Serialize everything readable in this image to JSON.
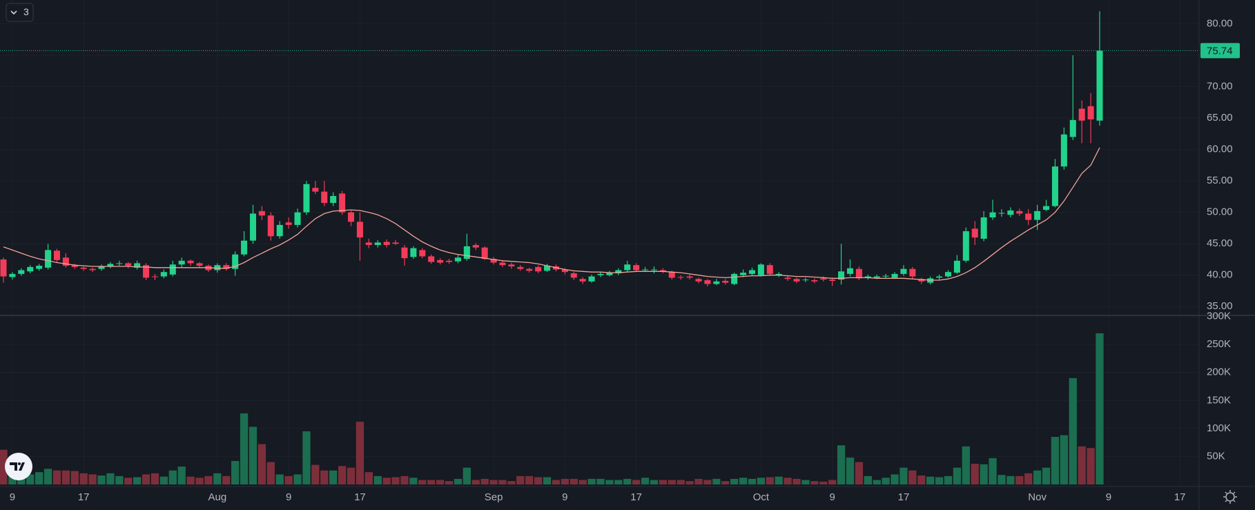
{
  "chart_data": {
    "type": "candlestick",
    "x": [
      "Jul 8",
      "Jul 9",
      "Jul 10",
      "Jul 11",
      "Jul 12",
      "Jul 13",
      "Jul 14",
      "Jul 15",
      "Jul 16",
      "Jul 17",
      "Jul 18",
      "Jul 19",
      "Jul 20",
      "Jul 21",
      "Jul 22",
      "Jul 23",
      "Jul 24",
      "Jul 25",
      "Jul 26",
      "Jul 27",
      "Jul 28",
      "Jul 29",
      "Jul 30",
      "Jul 31",
      "Aug 1",
      "Aug 2",
      "Aug 3",
      "Aug 4",
      "Aug 5",
      "Aug 6",
      "Aug 7",
      "Aug 8",
      "Aug 9",
      "Aug 10",
      "Aug 11",
      "Aug 12",
      "Aug 13",
      "Aug 14",
      "Aug 15",
      "Aug 16",
      "Aug 17",
      "Aug 18",
      "Aug 19",
      "Aug 20",
      "Aug 21",
      "Aug 22",
      "Aug 23",
      "Aug 24",
      "Aug 25",
      "Aug 26",
      "Aug 27",
      "Aug 28",
      "Aug 29",
      "Aug 30",
      "Aug 31",
      "Sep 1",
      "Sep 2",
      "Sep 3",
      "Sep 4",
      "Sep 5",
      "Sep 6",
      "Sep 7",
      "Sep 8",
      "Sep 9",
      "Sep 10",
      "Sep 11",
      "Sep 12",
      "Sep 13",
      "Sep 14",
      "Sep 15",
      "Sep 16",
      "Sep 17",
      "Sep 18",
      "Sep 19",
      "Sep 20",
      "Sep 21",
      "Sep 22",
      "Sep 23",
      "Sep 24",
      "Sep 25",
      "Sep 26",
      "Sep 27",
      "Sep 28",
      "Sep 29",
      "Sep 30",
      "Oct 1",
      "Oct 2",
      "Oct 3",
      "Oct 4",
      "Oct 5",
      "Oct 6",
      "Oct 7",
      "Oct 8",
      "Oct 9",
      "Oct 10",
      "Oct 11",
      "Oct 12",
      "Oct 13",
      "Oct 14",
      "Oct 15",
      "Oct 16",
      "Oct 17",
      "Oct 18",
      "Oct 19",
      "Oct 20",
      "Oct 21",
      "Oct 22",
      "Oct 23",
      "Oct 24",
      "Oct 25",
      "Oct 26",
      "Oct 27",
      "Oct 28",
      "Oct 29",
      "Oct 30",
      "Oct 31",
      "Nov 1",
      "Nov 2",
      "Nov 3",
      "Nov 4",
      "Nov 5",
      "Nov 6",
      "Nov 7",
      "Nov 8"
    ],
    "open": [
      42.5,
      39.7,
      40.2,
      40.6,
      41.0,
      41.2,
      43.9,
      42.8,
      41.6,
      41.2,
      41.0,
      41.0,
      41.4,
      41.8,
      41.9,
      41.2,
      41.6,
      39.8,
      39.8,
      40.1,
      41.7,
      42.3,
      41.9,
      41.5,
      40.8,
      41.6,
      41.0,
      43.3,
      45.5,
      50.2,
      49.5,
      46.2,
      48.4,
      48.0,
      50.0,
      53.9,
      53.3,
      51.5,
      53.0,
      50.0,
      48.5,
      45.2,
      44.8,
      45.3,
      45.2,
      44.4,
      42.9,
      44.0,
      43.0,
      42.4,
      42.3,
      42.2,
      42.6,
      44.8,
      44.4,
      42.6,
      42.0,
      41.7,
      41.3,
      41.0,
      41.3,
      40.7,
      41.4,
      40.9,
      40.3,
      39.4,
      39.0,
      40.0,
      40.0,
      40.3,
      40.8,
      41.6,
      40.8,
      40.8,
      40.8,
      40.5,
      39.7,
      39.8,
      39.4,
      39.2,
      38.6,
      39.1,
      38.6,
      40.0,
      40.2,
      40.0,
      41.6,
      40.0,
      39.6,
      39.4,
      39.2,
      39.2,
      39.5,
      39.3,
      39.3,
      40.2,
      41.0,
      39.6,
      39.6,
      39.8,
      39.6,
      40.2,
      41.0,
      39.4,
      38.8,
      39.6,
      39.8,
      40.4,
      42.3,
      47.4,
      45.8,
      49.2,
      49.8,
      49.6,
      50.2,
      49.8,
      48.8,
      50.4,
      51.0,
      57.3,
      62.0,
      66.5,
      66.9,
      64.6
    ],
    "high": [
      42.8,
      40.5,
      41.1,
      41.6,
      41.8,
      45.0,
      44.2,
      43.5,
      41.8,
      41.4,
      41.2,
      41.7,
      42.1,
      42.3,
      42.1,
      42.3,
      41.9,
      40.2,
      40.9,
      42.3,
      42.8,
      42.5,
      42.1,
      41.7,
      41.9,
      41.9,
      43.8,
      47.0,
      51.2,
      51.0,
      50.0,
      48.6,
      49.2,
      50.6,
      55.0,
      55.0,
      55.0,
      53.2,
      53.4,
      50.3,
      50.0,
      45.8,
      45.6,
      45.7,
      45.6,
      44.8,
      44.6,
      44.3,
      43.3,
      42.7,
      42.6,
      43.2,
      46.6,
      45.1,
      44.6,
      42.9,
      42.3,
      42.0,
      41.6,
      41.2,
      41.6,
      41.8,
      41.7,
      41.1,
      40.6,
      39.7,
      40.1,
      40.5,
      40.7,
      41.1,
      42.3,
      41.9,
      41.3,
      41.4,
      41.1,
      40.7,
      40.0,
      40.1,
      39.6,
      39.4,
      39.4,
      39.4,
      40.4,
      40.9,
      41.2,
      41.9,
      41.9,
      40.5,
      40.0,
      39.6,
      39.6,
      39.5,
      39.8,
      39.6,
      45.0,
      42.5,
      41.4,
      40.1,
      40.1,
      40.2,
      40.5,
      41.6,
      41.3,
      39.6,
      39.8,
      40.1,
      40.8,
      43.2,
      47.6,
      48.6,
      50.2,
      52.0,
      50.5,
      50.8,
      50.6,
      50.5,
      51.2,
      52.0,
      58.5,
      63.5,
      75.0,
      67.8,
      69.0,
      82.0
    ],
    "low": [
      38.8,
      39.3,
      39.9,
      40.3,
      40.7,
      40.9,
      42.0,
      41.2,
      41.0,
      40.7,
      40.5,
      40.7,
      41.1,
      41.5,
      41.1,
      40.9,
      39.2,
      39.2,
      39.5,
      39.8,
      41.3,
      41.5,
      41.1,
      40.5,
      40.4,
      40.7,
      39.9,
      43.0,
      45.0,
      48.8,
      45.5,
      45.8,
      47.4,
      47.6,
      49.6,
      52.9,
      51.0,
      51.0,
      49.6,
      47.8,
      42.3,
      44.3,
      44.4,
      44.4,
      44.8,
      41.5,
      42.6,
      42.7,
      41.8,
      41.7,
      41.8,
      41.9,
      42.3,
      44.0,
      42.4,
      41.7,
      41.3,
      41.0,
      40.7,
      40.4,
      40.3,
      40.5,
      40.6,
      40.1,
      39.2,
      38.6,
      38.8,
      39.7,
      39.8,
      40.0,
      40.5,
      40.5,
      40.5,
      40.3,
      40.3,
      39.3,
      39.3,
      39.3,
      38.7,
      38.2,
      38.4,
      38.5,
      38.4,
      39.7,
      39.9,
      39.8,
      39.9,
      39.7,
      39.1,
      38.7,
      38.9,
      38.7,
      39.0,
      38.3,
      38.5,
      39.8,
      39.2,
      39.3,
      39.4,
      39.5,
      39.4,
      39.9,
      39.5,
      38.6,
      38.5,
      39.3,
      39.6,
      40.2,
      42.0,
      44.8,
      45.4,
      48.8,
      49.3,
      49.2,
      49.4,
      48.0,
      47.2,
      50.2,
      50.8,
      56.8,
      61.5,
      61.0,
      61.0,
      63.8
    ],
    "close": [
      39.8,
      40.2,
      40.8,
      41.3,
      41.5,
      44.0,
      42.4,
      41.5,
      41.3,
      41.0,
      40.8,
      41.4,
      41.8,
      41.9,
      41.5,
      41.9,
      39.6,
      39.7,
      40.5,
      41.7,
      42.3,
      41.9,
      41.5,
      40.8,
      41.6,
      41.0,
      43.3,
      45.5,
      49.8,
      49.5,
      46.2,
      48.0,
      48.0,
      50.0,
      54.5,
      53.3,
      51.5,
      52.6,
      50.0,
      48.5,
      46.0,
      44.8,
      45.2,
      44.8,
      45.0,
      42.7,
      44.3,
      43.0,
      42.1,
      42.0,
      42.1,
      42.8,
      44.6,
      44.4,
      42.6,
      42.0,
      41.6,
      41.4,
      41.0,
      40.7,
      40.6,
      41.5,
      40.9,
      40.5,
      39.6,
      39.0,
      39.8,
      40.2,
      40.4,
      40.8,
      41.7,
      40.8,
      40.9,
      40.9,
      40.6,
      39.6,
      39.6,
      39.6,
      39.0,
      38.6,
      39.0,
      38.8,
      40.2,
      40.4,
      40.8,
      41.7,
      40.2,
      40.2,
      39.4,
      39.0,
      39.3,
      39.0,
      39.3,
      39.1,
      40.6,
      41.1,
      39.5,
      39.8,
      39.8,
      39.9,
      40.2,
      41.0,
      39.8,
      39.0,
      39.5,
      39.8,
      40.5,
      42.3,
      47.0,
      46.0,
      49.2,
      50.0,
      49.9,
      50.3,
      49.8,
      48.8,
      50.2,
      51.0,
      57.3,
      62.4,
      64.7,
      64.6,
      64.8,
      75.74
    ],
    "ma": [
      44.5,
      44.0,
      43.5,
      43.0,
      42.6,
      42.3,
      42.0,
      41.8,
      41.6,
      41.5,
      41.4,
      41.4,
      41.4,
      41.4,
      41.4,
      41.3,
      41.3,
      41.2,
      41.2,
      41.2,
      41.2,
      41.2,
      41.2,
      41.2,
      41.1,
      41.1,
      41.4,
      42.0,
      42.8,
      43.5,
      44.2,
      44.8,
      45.6,
      46.5,
      47.8,
      49.0,
      49.8,
      50.2,
      50.3,
      50.4,
      50.3,
      50.0,
      49.6,
      49.0,
      48.2,
      47.2,
      46.2,
      45.3,
      44.6,
      44.0,
      43.6,
      43.3,
      43.1,
      42.9,
      42.7,
      42.5,
      42.3,
      42.2,
      42.1,
      42.0,
      41.8,
      41.5,
      41.2,
      40.9,
      40.7,
      40.6,
      40.5,
      40.5,
      40.4,
      40.4,
      40.5,
      40.6,
      40.6,
      40.6,
      40.6,
      40.5,
      40.4,
      40.2,
      40.0,
      39.8,
      39.7,
      39.6,
      39.7,
      39.8,
      39.9,
      39.9,
      40.0,
      40.0,
      39.9,
      39.8,
      39.8,
      39.7,
      39.6,
      39.5,
      39.5,
      39.6,
      39.6,
      39.6,
      39.5,
      39.5,
      39.5,
      39.5,
      39.4,
      39.3,
      39.2,
      39.2,
      39.4,
      39.8,
      40.4,
      41.2,
      42.2,
      43.3,
      44.4,
      45.4,
      46.3,
      47.2,
      48.0,
      48.8,
      50.0,
      51.8,
      54.0,
      56.2,
      57.5,
      60.3
    ],
    "volume": [
      62000,
      15000,
      20000,
      18000,
      22000,
      28000,
      25000,
      25000,
      24000,
      20000,
      18000,
      16000,
      20000,
      15000,
      12000,
      13000,
      18000,
      20000,
      14000,
      25000,
      32000,
      14000,
      12000,
      15000,
      20000,
      15000,
      42000,
      127000,
      103000,
      72000,
      40000,
      18000,
      15000,
      18000,
      95000,
      35000,
      25000,
      25000,
      33000,
      30000,
      112000,
      22000,
      15000,
      12000,
      13000,
      15000,
      12000,
      8000,
      8000,
      8000,
      6000,
      10000,
      30000,
      8000,
      10000,
      8000,
      8000,
      6000,
      15000,
      15000,
      13000,
      13000,
      8000,
      10000,
      10000,
      8000,
      10000,
      10000,
      8000,
      8000,
      10000,
      8000,
      12000,
      8000,
      8000,
      8000,
      8000,
      6000,
      10000,
      8000,
      10000,
      6000,
      10000,
      12000,
      10000,
      12000,
      13000,
      14000,
      12000,
      10000,
      8000,
      6000,
      5000,
      8000,
      70000,
      48000,
      40000,
      15000,
      8000,
      12000,
      18000,
      30000,
      25000,
      16000,
      14000,
      13000,
      15000,
      30000,
      68000,
      37000,
      36000,
      47000,
      17000,
      15000,
      15000,
      20000,
      25000,
      30000,
      85000,
      88000,
      190000,
      68000,
      65000,
      270000
    ],
    "up_color": "#22d38c",
    "down_color": "#f23c5a",
    "volume_up_color": "#1b6e50",
    "volume_down_color": "#7c2f3b",
    "ma_color": "#f2a598",
    "last_price_color": "#22c28a",
    "xlim": [
      "Jul 8",
      "Nov 19"
    ],
    "xticks": [
      {
        "value": "Jul 9",
        "label": "9"
      },
      {
        "value": "Jul 17",
        "label": "17"
      },
      {
        "value": "Aug 1",
        "label": "Aug"
      },
      {
        "value": "Aug 9",
        "label": "9"
      },
      {
        "value": "Aug 17",
        "label": "17"
      },
      {
        "value": "Sep 1",
        "label": "Sep"
      },
      {
        "value": "Sep 9",
        "label": "9"
      },
      {
        "value": "Sep 17",
        "label": "17"
      },
      {
        "value": "Oct 1",
        "label": "Oct"
      },
      {
        "value": "Oct 9",
        "label": "9"
      },
      {
        "value": "Oct 17",
        "label": "17"
      },
      {
        "value": "Nov 1",
        "label": "Nov"
      },
      {
        "value": "Nov 9",
        "label": "9"
      },
      {
        "value": "Nov 17",
        "label": "17"
      }
    ],
    "ylim": [
      33.6,
      83.8
    ],
    "yticks": [
      {
        "value": 35,
        "label": "35.00"
      },
      {
        "value": 40,
        "label": "40.00"
      },
      {
        "value": 45,
        "label": "45.00"
      },
      {
        "value": 50,
        "label": "50.00"
      },
      {
        "value": 55,
        "label": "55.00"
      },
      {
        "value": 60,
        "label": "60.00"
      },
      {
        "value": 65,
        "label": "65.00"
      },
      {
        "value": 70,
        "label": "70.00"
      },
      {
        "value": 75,
        "label": "75.00"
      },
      {
        "value": 80,
        "label": "80.00"
      }
    ],
    "volume_ylim": [
      0,
      302000
    ],
    "volume_yticks": [
      {
        "value": 50000,
        "label": "50K"
      },
      {
        "value": 100000,
        "label": "100K"
      },
      {
        "value": 150000,
        "label": "150K"
      },
      {
        "value": 200000,
        "label": "200K"
      },
      {
        "value": 250000,
        "label": "250K"
      },
      {
        "value": 300000,
        "label": "300K"
      }
    ],
    "grid": true
  },
  "ui": {
    "indicator_button": "3"
  }
}
